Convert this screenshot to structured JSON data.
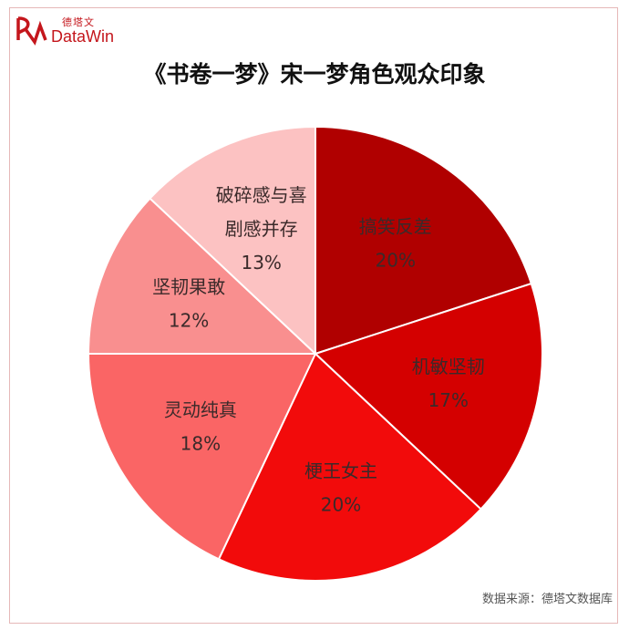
{
  "brand": {
    "name_cn": "德塔文",
    "name_en": "DataWin",
    "logo_color": "#c4161c"
  },
  "footer": {
    "source": "数据来源：德塔文数据库"
  },
  "chart_data": {
    "type": "pie",
    "title": "《书卷一梦》宋一梦角色观众印象",
    "slices": [
      {
        "label": "搞笑反差",
        "percent_label": "20%",
        "value": 20,
        "color": "#b00000"
      },
      {
        "label": "机敏坚韧",
        "percent_label": "17%",
        "value": 17,
        "color": "#d40000"
      },
      {
        "label": "梗王女主",
        "percent_label": "20%",
        "value": 20,
        "color": "#f20b0b"
      },
      {
        "label": "灵动纯真",
        "percent_label": "18%",
        "value": 18,
        "color": "#fa6565"
      },
      {
        "label": "坚韧果敢",
        "percent_label": "12%",
        "value": 12,
        "color": "#f98f8f"
      },
      {
        "label": "破碎感与喜剧感并存",
        "label_lines": [
          "破碎感与喜",
          "剧感并存"
        ],
        "percent_label": "13%",
        "value": 13,
        "color": "#fcc2c2"
      }
    ],
    "start_angle": "12 o'clock",
    "direction": "clockwise"
  }
}
